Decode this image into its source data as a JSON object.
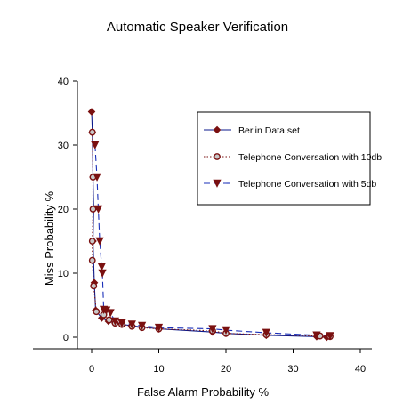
{
  "chart_data": {
    "type": "line",
    "title": "Automatic Speaker Verification",
    "xlabel": "False Alarm Probability %",
    "ylabel": "Miss Probability %",
    "xlim": [
      -9,
      42
    ],
    "ylim": [
      -2.5,
      40
    ],
    "xticks": [
      "0",
      "10",
      "20",
      "30",
      "40"
    ],
    "xtick_values": [
      0,
      10,
      20,
      30,
      40
    ],
    "yticks": [
      "0",
      "10",
      "20",
      "30",
      "40"
    ],
    "ytick_values": [
      0,
      10,
      20,
      30,
      40
    ],
    "grid": false,
    "legend_position": "top-right",
    "series": [
      {
        "name": "Berlin Data set",
        "color": "#0b1a8c",
        "marker": "diamond",
        "marker_color": "#7a1010",
        "line_style": "solid",
        "points": [
          [
            0.0,
            35.2
          ],
          [
            0.1,
            32.0
          ],
          [
            0.2,
            25.0
          ],
          [
            0.3,
            20.0
          ],
          [
            0.2,
            15.0
          ],
          [
            0.4,
            8.5
          ],
          [
            0.6,
            4.2
          ],
          [
            1.5,
            3.0
          ],
          [
            2.5,
            2.5
          ],
          [
            3.5,
            2.2
          ],
          [
            4.5,
            2.0
          ],
          [
            6.0,
            1.8
          ],
          [
            7.5,
            1.6
          ],
          [
            10.0,
            1.3
          ],
          [
            18.0,
            0.8
          ],
          [
            20.0,
            0.6
          ],
          [
            26.0,
            0.3
          ],
          [
            33.5,
            0.1
          ],
          [
            35.0,
            0.0
          ]
        ]
      },
      {
        "name": "Telephone Conversation with 10db",
        "color": "#7a1010",
        "marker": "circle",
        "marker_color": "#7a1010",
        "line_style": "dotted",
        "points": [
          [
            0.1,
            32.0
          ],
          [
            0.2,
            25.0
          ],
          [
            0.2,
            20.0
          ],
          [
            0.1,
            15.0
          ],
          [
            0.1,
            12.0
          ],
          [
            0.3,
            8.0
          ],
          [
            0.7,
            4.0
          ],
          [
            1.8,
            3.5
          ],
          [
            2.6,
            2.7
          ],
          [
            3.5,
            2.2
          ],
          [
            4.5,
            2.0
          ],
          [
            6.0,
            1.7
          ],
          [
            7.5,
            1.5
          ],
          [
            10.0,
            1.3
          ],
          [
            18.0,
            1.0
          ],
          [
            20.0,
            0.6
          ],
          [
            26.0,
            0.4
          ],
          [
            34.0,
            0.2
          ],
          [
            35.5,
            0.1
          ]
        ]
      },
      {
        "name": "Telephone Conversation with 5db",
        "color": "#1a2fb8",
        "marker": "triangle-down",
        "marker_color": "#7a1010",
        "line_style": "dashed",
        "points": [
          [
            0.5,
            30.0
          ],
          [
            0.8,
            25.0
          ],
          [
            1.0,
            20.0
          ],
          [
            1.2,
            15.0
          ],
          [
            1.5,
            11.0
          ],
          [
            1.6,
            10.0
          ],
          [
            1.8,
            4.3
          ],
          [
            2.2,
            4.2
          ],
          [
            2.8,
            3.8
          ],
          [
            3.5,
            2.5
          ],
          [
            4.5,
            2.2
          ],
          [
            6.0,
            2.0
          ],
          [
            7.5,
            1.8
          ],
          [
            10.0,
            1.5
          ],
          [
            18.0,
            1.3
          ],
          [
            20.0,
            1.1
          ],
          [
            26.0,
            0.7
          ],
          [
            33.5,
            0.3
          ],
          [
            35.5,
            0.2
          ]
        ]
      }
    ]
  }
}
